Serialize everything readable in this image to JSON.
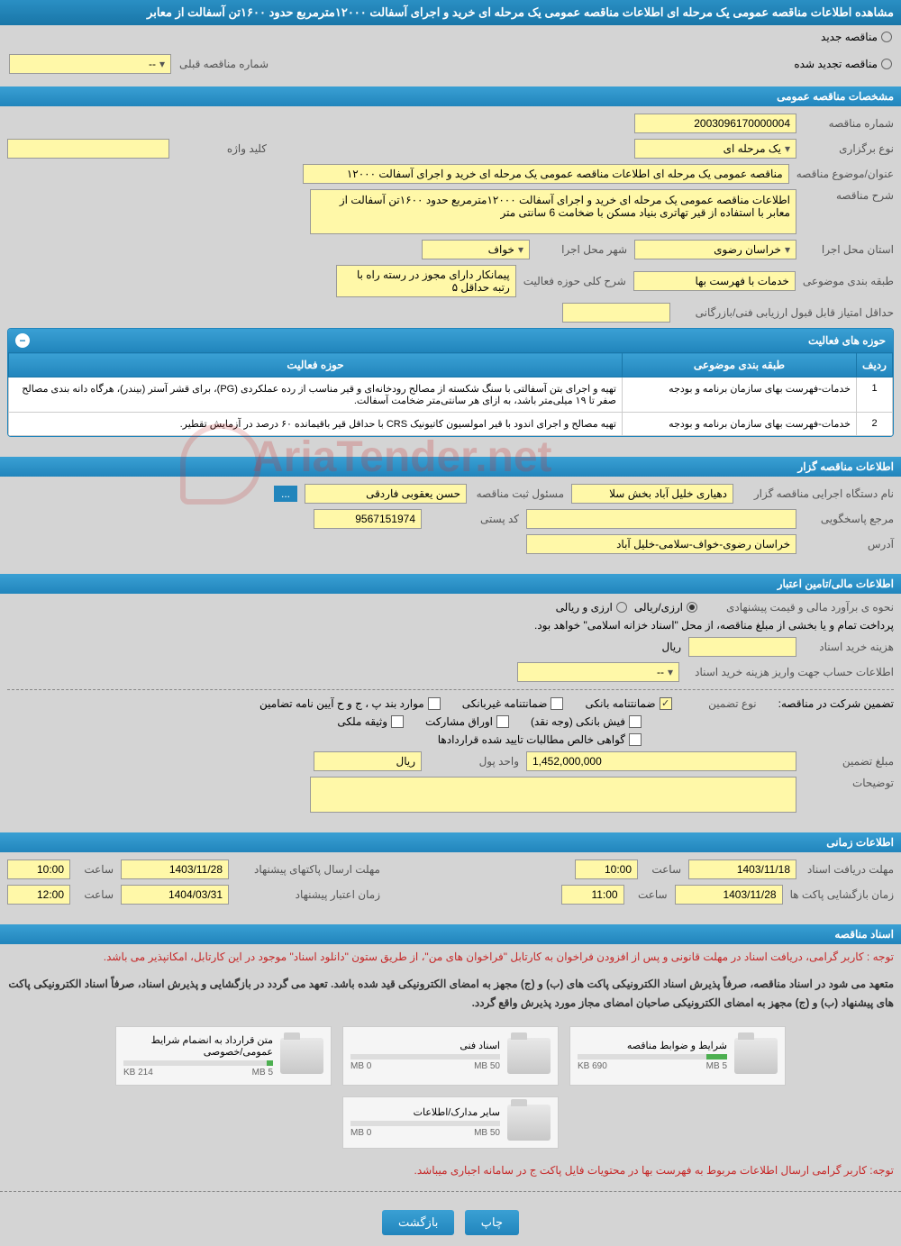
{
  "page_title": "مشاهده اطلاعات مناقصه عمومی یک مرحله ای اطلاعات مناقصه عمومی یک مرحله ای خرید و اجرای آسفالت ۱۲۰۰۰مترمربع حدود ۱۶۰۰تن آسفالت از معابر",
  "tender_type": {
    "new": "مناقصه جدید",
    "renewed": "مناقصه تجدید شده",
    "prev_number_label": "شماره مناقصه قبلی",
    "prev_number_value": "--"
  },
  "sections": {
    "general": "مشخصات مناقصه عمومی",
    "organizer": "اطلاعات مناقصه گزار",
    "financial": "اطلاعات مالی/تامین اعتبار",
    "timing": "اطلاعات زمانی",
    "documents": "اسناد مناقصه"
  },
  "general": {
    "number_label": "شماره مناقصه",
    "number_value": "2003096170000004",
    "type_label": "نوع برگزاری",
    "type_value": "یک مرحله ای",
    "keyword_label": "کلید واژه",
    "keyword_value": "",
    "subject_label": "عنوان/موضوع مناقصه",
    "subject_value": "مناقصه عمومی یک مرحله ای  اطلاعات مناقصه عمومی یک مرحله ای خرید و اجرای آسفالت ۱۲۰۰۰",
    "desc_label": "شرح مناقصه",
    "desc_value": "اطلاعات مناقصه عمومی یک مرحله ای خرید و اجرای آسفالت ۱۲۰۰۰مترمربع حدود ۱۶۰۰تن آسفالت از معابر با استفاده از قیر تهاتری بنیاد مسکن با ضخامت 6 سانتی متر",
    "province_label": "استان محل اجرا",
    "province_value": "خراسان رضوی",
    "city_label": "شهر محل اجرا",
    "city_value": "خواف",
    "category_label": "طبقه بندی موضوعی",
    "category_value": "خدمات با فهرست بها",
    "activity_desc_label": "شرح کلی حوزه فعالیت",
    "activity_desc_value": "پیمانکار دارای مجوز در رسته راه با رتبه حداقل ۵",
    "min_score_label": "حداقل امتیاز قابل قبول ارزیابی فنی/بازرگانی",
    "min_score_value": ""
  },
  "activity_table": {
    "title": "حوزه های فعالیت",
    "columns": [
      "ردیف",
      "طبقه بندی موضوعی",
      "حوزه فعالیت"
    ],
    "rows": [
      [
        "1",
        "خدمات-فهرست بهای سازمان برنامه و بودجه",
        "تهیه و اجرای بتن آسفالتی با سنگ شکسته از مصالح رودخانه‌ای و قیر مناسب از رده عملکردی (PG)، برای قشر آستر (بیندر)، هرگاه دانه بندی مصالح صفر تا ۱۹ میلی‌متر باشد، به ازای هر سانتی‌متر ضخامت آسفالت."
      ],
      [
        "2",
        "خدمات-فهرست بهای سازمان برنامه و بودجه",
        "تهیه مصالح و اجرای اندود با قیر امولسیون کاتیونیک CRS با حداقل قیر باقیمانده ۶۰ درصد در آزمایش تقطیر."
      ]
    ]
  },
  "organizer": {
    "exec_label": "نام دستگاه اجرایی مناقصه گزار",
    "exec_value": "دهیاری خلیل آباد بخش سلا",
    "registrar_label": "مسئول ثبت مناقصه",
    "registrar_value": "حسن یعقوبی فاردقی",
    "more_btn": "...",
    "contact_label": "مرجع پاسخگویی",
    "postal_label": "کد پستی",
    "postal_value": "9567151974",
    "address_label": "آدرس",
    "address_value": "خراسان رضوی-خواف-سلامی-خلیل آباد"
  },
  "financial": {
    "estimate_label": "نحوه ی برآورد مالی و قیمت پیشنهادی",
    "rial_option": "ارزی/ریالی",
    "both_option": "ارزی و ریالی",
    "payment_note": "پرداخت تمام و یا بخشی از مبلغ مناقصه، از محل \"اسناد خزانه اسلامی\" خواهد بود.",
    "doc_cost_label": "هزینه خرید اسناد",
    "doc_cost_unit": "ریال",
    "account_label": "اطلاعات حساب جهت واریز هزینه خرید اسناد",
    "account_value": "--",
    "guarantee_header": "تضمین شرکت در مناقصه:",
    "guarantee_type_label": "نوع تضمین",
    "bank_guarantee": "ضمانتنامه بانکی",
    "nonbank_guarantee": "ضمانتنامه غیربانکی",
    "bylaw_items": "موارد بند پ ، ج و ح آیین نامه تضامین",
    "bank_receipt": "فیش بانکی (وجه نقد)",
    "participation_bonds": "اوراق مشارکت",
    "property_collateral": "وثیقه ملکی",
    "net_receivables": "گواهی خالص مطالبات تایید شده قراردادها",
    "amount_label": "مبلغ تضمین",
    "amount_value": "1,452,000,000",
    "unit_label": "واحد پول",
    "unit_value": "ریال",
    "notes_label": "توضیحات"
  },
  "timing": {
    "receive_label": "مهلت دریافت اسناد",
    "receive_date": "1403/11/18",
    "receive_time": "10:00",
    "send_label": "مهلت ارسال پاکتهای پیشنهاد",
    "send_date": "1403/11/28",
    "send_time": "10:00",
    "open_label": "زمان بازگشایی پاکت ها",
    "open_date": "1403/11/28",
    "open_time": "11:00",
    "validity_label": "زمان اعتبار پیشنهاد",
    "validity_date": "1404/03/31",
    "validity_time": "12:00",
    "time_label": "ساعت"
  },
  "documents": {
    "note1": "توجه : کاربر گرامی، دریافت اسناد در مهلت قانونی و پس از افزودن فراخوان به کارتابل \"فراخوان های من\"، از طریق ستون \"دانلود اسناد\" موجود در این کارتابل، امکانپذیر می باشد.",
    "note2": "متعهد می شود در اسناد مناقصه، صرفاً پذیرش اسناد الکترونیکی پاکت های (ب) و (ج) مجهز به امضای الکترونیکی قید شده باشد. تعهد می گردد در بازگشایی و پذیرش اسناد، صرفاً اسناد الکترونیکی پاکت های پیشنهاد (ب) و (ج) مجهز به امضای الکترونیکی صاحبان امضای مجاز مورد پذیرش واقع گردد.",
    "items": [
      {
        "title": "شرایط و ضوابط مناقصه",
        "used": "690 KB",
        "total": "5 MB",
        "fill": 14
      },
      {
        "title": "اسناد فنی",
        "used": "0 MB",
        "total": "50 MB",
        "fill": 0
      },
      {
        "title": "متن قرارداد به انضمام شرایط عمومی/خصوصی",
        "used": "214 KB",
        "total": "5 MB",
        "fill": 4
      },
      {
        "title": "سایر مدارک/اطلاعات",
        "used": "0 MB",
        "total": "50 MB",
        "fill": 0
      }
    ],
    "footer_note": "توجه: کاربر گرامی ارسال اطلاعات مربوط به فهرست بها در محتویات فایل پاکت ج در سامانه اجباری میباشد."
  },
  "buttons": {
    "print": "چاپ",
    "back": "بازگشت"
  },
  "watermark": "AriaTender.net"
}
